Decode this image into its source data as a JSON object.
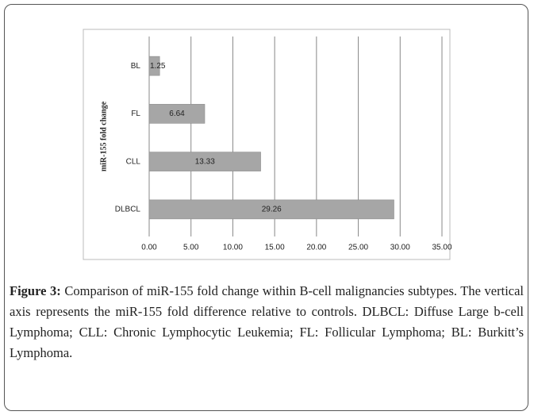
{
  "chart_data": {
    "type": "barh",
    "ylabel": "miR-155 fold change",
    "categories": [
      "BL",
      "FL",
      "CLL",
      "DLBCL"
    ],
    "values": [
      1.25,
      6.64,
      13.33,
      29.26
    ],
    "color": "#a6a6a6",
    "xlim": [
      0,
      35
    ],
    "xticks": [
      {
        "value": 0,
        "label": "0.00"
      },
      {
        "value": 5,
        "label": "5.00"
      },
      {
        "value": 10,
        "label": "10.00"
      },
      {
        "value": 15,
        "label": "15.00"
      },
      {
        "value": 20,
        "label": "20.00"
      },
      {
        "value": 25,
        "label": "25.00"
      },
      {
        "value": 30,
        "label": "30.00"
      },
      {
        "value": 35,
        "label": "35.00"
      }
    ],
    "grid": true
  },
  "caption": {
    "label": "Figure 3:",
    "text": "Comparison of miR-155 fold change within B-cell malignancies subtypes. The vertical axis represents the miR-155 fold difference relative to controls. DLBCL: Diffuse Large b-cell Lymphoma; CLL: Chronic Lymphocytic Leukemia; FL: Follicular Lymphoma; BL: Burkitt’s Lymphoma."
  }
}
